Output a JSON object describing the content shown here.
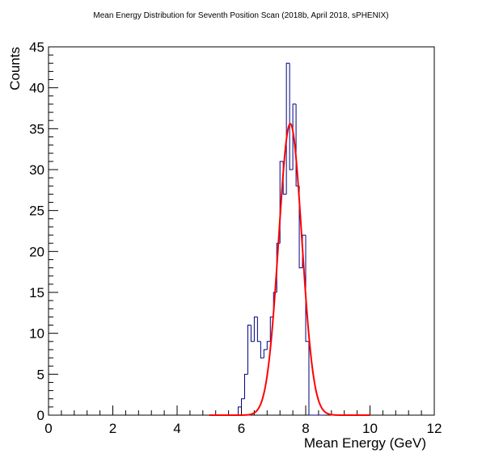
{
  "chart_data": {
    "type": "histogram",
    "title": "Mean Energy Distribution for Seventh Position Scan (2018b, April 2018, sPHENIX)",
    "xlabel": "Mean Energy (GeV)",
    "ylabel": "Counts",
    "xlim": [
      0,
      12
    ],
    "ylim": [
      0,
      45
    ],
    "x_ticks": [
      "0",
      "2",
      "4",
      "6",
      "8",
      "10",
      "12"
    ],
    "y_ticks": [
      "0",
      "5",
      "10",
      "15",
      "20",
      "25",
      "30",
      "35",
      "40",
      "45"
    ],
    "grid": false,
    "histogram": {
      "color": "#000080",
      "bin_edges": [
        5.5,
        5.6,
        5.7,
        5.8,
        5.9,
        6.0,
        6.1,
        6.2,
        6.3,
        6.4,
        6.5,
        6.6,
        6.7,
        6.8,
        6.9,
        7.0,
        7.1,
        7.2,
        7.3,
        7.4,
        7.5,
        7.6,
        7.7,
        7.8,
        7.9,
        8.0,
        8.1,
        8.2,
        8.3,
        8.4,
        8.5,
        8.6
      ],
      "counts": [
        0,
        0,
        0,
        0,
        1,
        2,
        5,
        11,
        9,
        12,
        9,
        7,
        8,
        9,
        12,
        15,
        21,
        31,
        27,
        43,
        30,
        38,
        28,
        18,
        22,
        9,
        0,
        0,
        0,
        0,
        0
      ]
    },
    "fit": {
      "type": "gaussian",
      "color": "#ff0000",
      "amplitude": 35.6,
      "mean": 7.52,
      "sigma": 0.36,
      "range": [
        5.0,
        10.0
      ]
    }
  }
}
